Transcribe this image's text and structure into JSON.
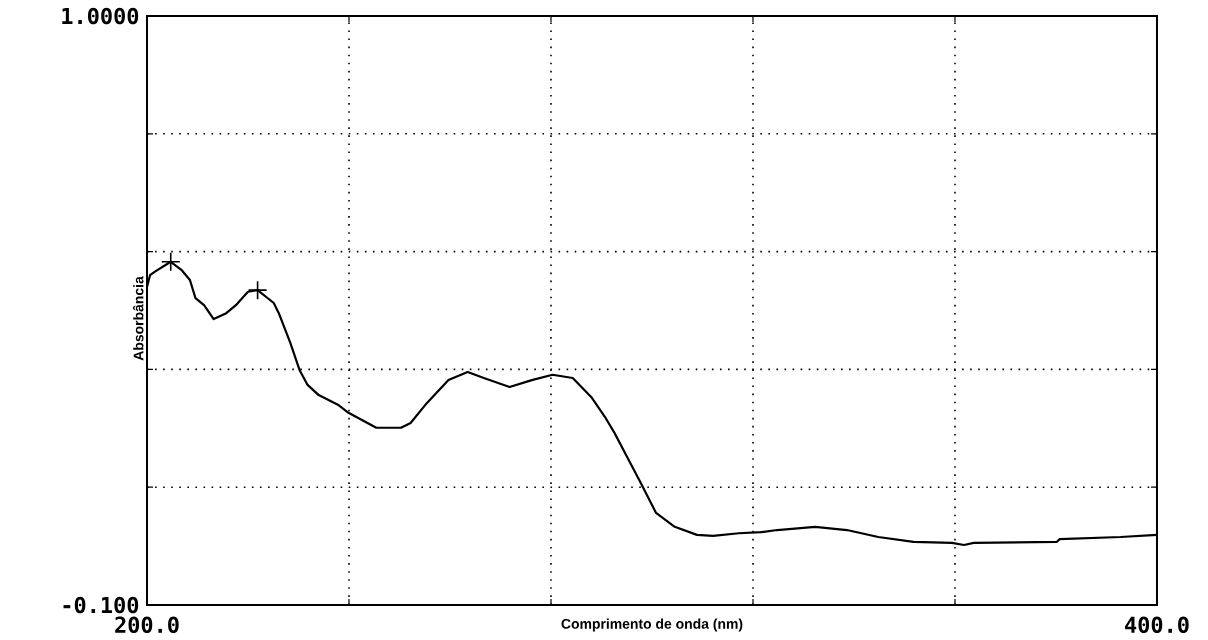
{
  "chart_data": {
    "type": "line",
    "xlabel": "Comprimento de onda (nm)",
    "ylabel": "Absorbância",
    "xlim": [
      200,
      400
    ],
    "ylim": [
      -0.1,
      1.0
    ],
    "xticks": [
      {
        "value": 200,
        "label": "200.0"
      },
      {
        "value": 240,
        "label": null
      },
      {
        "value": 280,
        "label": null
      },
      {
        "value": 320,
        "label": null
      },
      {
        "value": 360,
        "label": null
      },
      {
        "value": 400,
        "label": "400.0"
      }
    ],
    "yticks": [
      {
        "value": -0.1,
        "label": "-0.100"
      },
      {
        "value": 0.12,
        "label": null
      },
      {
        "value": 0.34,
        "label": null
      },
      {
        "value": 0.56,
        "label": null
      },
      {
        "value": 0.78,
        "label": null
      },
      {
        "value": 1.0,
        "label": "1.0000"
      }
    ],
    "grid": true,
    "series": [
      {
        "color": "#000000",
        "x": [
          200.0,
          200.6,
          201.5,
          204.7,
          206.8,
          208.5,
          209.6,
          211.3,
          213.2,
          215.7,
          217.6,
          220.0,
          221.9,
          225.1,
          226.1,
          228.4,
          230.2,
          231.8,
          234.0,
          237.8,
          239.9,
          245.4,
          250.3,
          252.2,
          255.4,
          259.7,
          263.5,
          266.7,
          271.8,
          276.2,
          280.3,
          284.3,
          288.1,
          290.7,
          292.6,
          295.1,
          297.5,
          300.8,
          304.5,
          308.9,
          312.1,
          317.2,
          321.6,
          324.8,
          332.3,
          338.6,
          344.8,
          351.8,
          359.4,
          361.8,
          363.7,
          380.2,
          380.7,
          392.8,
          400.0
        ],
        "values": [
          0.494,
          0.516,
          0.522,
          0.541,
          0.526,
          0.507,
          0.473,
          0.46,
          0.434,
          0.445,
          0.46,
          0.485,
          0.488,
          0.464,
          0.445,
          0.389,
          0.339,
          0.311,
          0.292,
          0.274,
          0.259,
          0.231,
          0.231,
          0.24,
          0.277,
          0.32,
          0.335,
          0.324,
          0.307,
          0.32,
          0.33,
          0.324,
          0.287,
          0.251,
          0.221,
          0.176,
          0.133,
          0.072,
          0.046,
          0.031,
          0.029,
          0.034,
          0.036,
          0.04,
          0.046,
          0.04,
          0.027,
          0.018,
          0.016,
          0.012,
          0.016,
          0.018,
          0.023,
          0.027,
          0.031
        ]
      },
      {
        "type": "scatter",
        "marker": "cross",
        "color": "#000000",
        "x": [
          204.7,
          221.9
        ],
        "values": [
          0.541,
          0.488
        ]
      }
    ]
  }
}
